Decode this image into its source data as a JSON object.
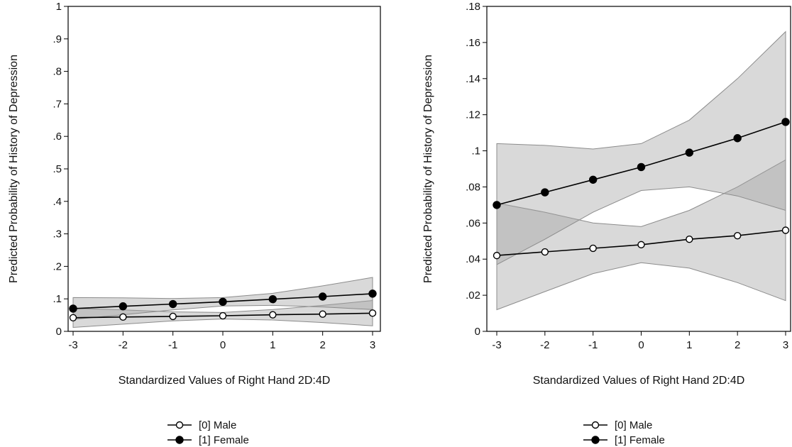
{
  "chart_data": [
    {
      "type": "line",
      "title": "",
      "xlabel": "Standardized Values of Right Hand 2D:4D",
      "ylabel": "Predicted Probability of History of Depression",
      "xlim": [
        -3,
        3
      ],
      "ylim": [
        0,
        1
      ],
      "x_ticks": [
        "-3",
        "-2",
        "-1",
        "0",
        "1",
        "2",
        "3"
      ],
      "y_ticks": [
        "0",
        ".1",
        ".2",
        ".3",
        ".4",
        ".5",
        ".6",
        ".7",
        ".8",
        ".9",
        "1"
      ],
      "x": [
        -3,
        -2,
        -1,
        0,
        1,
        2,
        3
      ],
      "series": [
        {
          "name": "[0] Male",
          "marker": "hollow-circle",
          "values": [
            0.042,
            0.044,
            0.046,
            0.048,
            0.051,
            0.053,
            0.056
          ],
          "ci_lower": [
            0.012,
            0.022,
            0.032,
            0.038,
            0.035,
            0.027,
            0.017
          ],
          "ci_upper": [
            0.071,
            0.066,
            0.06,
            0.058,
            0.067,
            0.08,
            0.095
          ]
        },
        {
          "name": "[1] Female",
          "marker": "filled-circle",
          "values": [
            0.07,
            0.077,
            0.084,
            0.091,
            0.099,
            0.107,
            0.116
          ],
          "ci_lower": [
            0.037,
            0.051,
            0.066,
            0.078,
            0.08,
            0.075,
            0.067
          ],
          "ci_upper": [
            0.104,
            0.103,
            0.101,
            0.104,
            0.117,
            0.14,
            0.166
          ]
        }
      ],
      "legend": [
        "[0] Male",
        "[1] Female"
      ],
      "legend_position": "bottom-center",
      "grid": false
    },
    {
      "type": "line",
      "title": "",
      "xlabel": "Standardized Values of Right Hand 2D:4D",
      "ylabel": "Predicted Probability of History of Depression",
      "xlim": [
        -3,
        3
      ],
      "ylim": [
        0,
        0.18
      ],
      "x_ticks": [
        "-3",
        "-2",
        "-1",
        "0",
        "1",
        "2",
        "3"
      ],
      "y_ticks": [
        "0",
        ".02",
        ".04",
        ".06",
        ".08",
        ".1",
        ".12",
        ".14",
        ".16",
        ".18"
      ],
      "x": [
        -3,
        -2,
        -1,
        0,
        1,
        2,
        3
      ],
      "series": [
        {
          "name": "[0] Male",
          "marker": "hollow-circle",
          "values": [
            0.042,
            0.044,
            0.046,
            0.048,
            0.051,
            0.053,
            0.056
          ],
          "ci_lower": [
            0.012,
            0.022,
            0.032,
            0.038,
            0.035,
            0.027,
            0.017
          ],
          "ci_upper": [
            0.071,
            0.066,
            0.06,
            0.058,
            0.067,
            0.08,
            0.095
          ]
        },
        {
          "name": "[1] Female",
          "marker": "filled-circle",
          "values": [
            0.07,
            0.077,
            0.084,
            0.091,
            0.099,
            0.107,
            0.116
          ],
          "ci_lower": [
            0.037,
            0.051,
            0.066,
            0.078,
            0.08,
            0.075,
            0.067
          ],
          "ci_upper": [
            0.104,
            0.103,
            0.101,
            0.104,
            0.117,
            0.14,
            0.166
          ]
        }
      ],
      "legend": [
        "[0] Male",
        "[1] Female"
      ],
      "legend_position": "bottom-center",
      "grid": false
    }
  ],
  "colors": {
    "line": "#000000",
    "ci_fill": "#a0a0a0",
    "ci_edge": "#8c8c8c",
    "axis": "#000000"
  }
}
